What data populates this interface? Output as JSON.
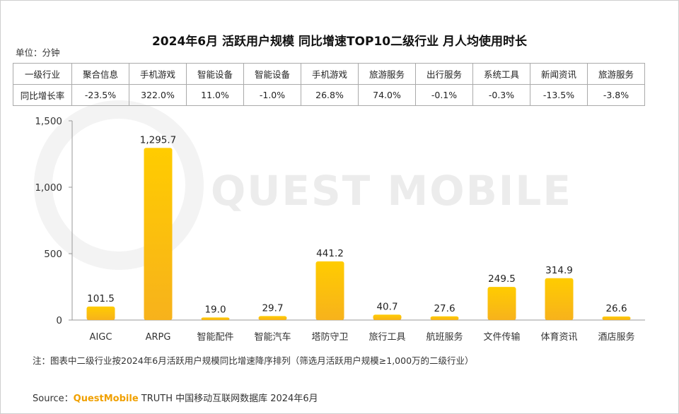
{
  "title": "2024年6月 活跃用户规模 同比增速TOP10二级行业 月人均使用时长",
  "unit_label": "单位：分钟",
  "watermark": "QUEST MOBILE",
  "growth_table": {
    "row1_header": "一级行业",
    "row2_header": "同比增长率",
    "categories": [
      "聚合信息",
      "手机游戏",
      "智能设备",
      "智能设备",
      "手机游戏",
      "旅游服务",
      "出行服务",
      "系统工具",
      "新闻资讯",
      "旅游服务"
    ],
    "growth": [
      "-23.5%",
      "322.0%",
      "11.0%",
      "-1.0%",
      "26.8%",
      "74.0%",
      "-0.1%",
      "-0.3%",
      "-13.5%",
      "-3.8%"
    ]
  },
  "chart_data": {
    "type": "bar",
    "title": "2024年6月 活跃用户规模 同比增速TOP10二级行业 月人均使用时长",
    "categories": [
      "AIGC",
      "ARPG",
      "智能配件",
      "智能汽车",
      "塔防守卫",
      "旅行工具",
      "航班服务",
      "文件传输",
      "体育资讯",
      "酒店服务"
    ],
    "values": [
      101.5,
      1295.7,
      19.0,
      29.7,
      441.2,
      40.7,
      27.6,
      249.5,
      314.9,
      26.6
    ],
    "value_labels": [
      "101.5",
      "1,295.7",
      "19.0",
      "29.7",
      "441.2",
      "40.7",
      "27.6",
      "249.5",
      "314.9",
      "26.6"
    ],
    "ylim": [
      0,
      1500
    ],
    "yticks": [
      0,
      500,
      1000,
      1500
    ],
    "ytick_labels": [
      "0",
      "500",
      "1,000",
      "1,500"
    ],
    "xlabel": "",
    "ylabel": "分钟",
    "bar_color_top": "#ffcc00",
    "bar_color_bottom": "#f7b21c"
  },
  "note": "注：图表中二级行业按2024年6月活跃用户规模同比增速降序排列（筛选月活跃用户规模≥1,000万的二级行业）",
  "source": {
    "prefix": "Source：",
    "brand": "QuestMobile",
    "rest": " TRUTH 中国移动互联网数据库 2024年6月"
  }
}
